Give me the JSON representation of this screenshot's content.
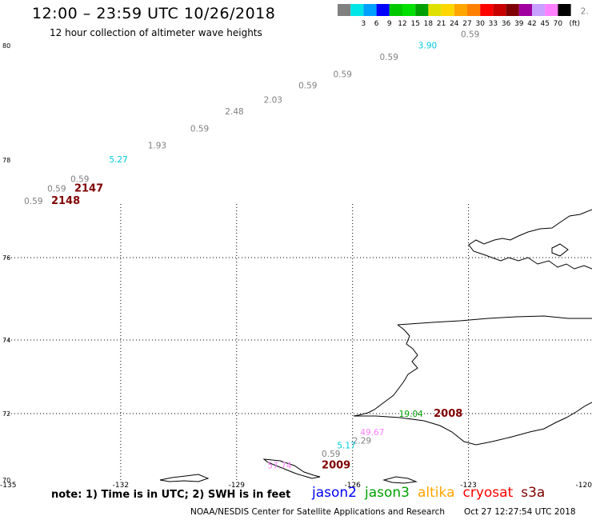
{
  "header": {
    "title": "12:00 – 23:59 UTC 10/26/2018",
    "subtitle": "12 hour collection of altimeter wave heights"
  },
  "legend": {
    "unit": "(ft)",
    "bins": [
      {
        "label": "",
        "color": "#808080"
      },
      {
        "label": "3",
        "color": "#00e5e5"
      },
      {
        "label": "6",
        "color": "#00a0ff"
      },
      {
        "label": "9",
        "color": "#0000ff"
      },
      {
        "label": "12",
        "color": "#00c800"
      },
      {
        "label": "15",
        "color": "#00e000"
      },
      {
        "label": "18",
        "color": "#00a000"
      },
      {
        "label": "21",
        "color": "#e0e000"
      },
      {
        "label": "24",
        "color": "#ffd700"
      },
      {
        "label": "27",
        "color": "#ffa500"
      },
      {
        "label": "30",
        "color": "#ff7f00"
      },
      {
        "label": "33",
        "color": "#ff0000"
      },
      {
        "label": "36",
        "color": "#c80000"
      },
      {
        "label": "39",
        "color": "#800000"
      },
      {
        "label": "42",
        "color": "#a000a0"
      },
      {
        "label": "45",
        "color": "#c8a0ff"
      },
      {
        "label": "70",
        "color": "#ff80ff"
      },
      {
        "label": "",
        "color": "#000000"
      }
    ]
  },
  "axes": {
    "lon_labels": [
      "-135",
      "-132",
      "-129",
      "-126",
      "-123",
      "-120"
    ],
    "lat_labels": [
      "80",
      "78",
      "76",
      "74",
      "72",
      "70"
    ]
  },
  "observations": [
    {
      "text": "0.59",
      "lon": -134.5,
      "lat": 77.1,
      "color": "#808080"
    },
    {
      "text": "2148",
      "lon": -133.8,
      "lat": 77.1,
      "color": "#800000",
      "bold": true
    },
    {
      "text": "0.59",
      "lon": -133.9,
      "lat": 77.35,
      "color": "#808080"
    },
    {
      "text": "2147",
      "lon": -133.2,
      "lat": 77.35,
      "color": "#800000",
      "bold": true
    },
    {
      "text": "0.59",
      "lon": -133.3,
      "lat": 77.55,
      "color": "#808080"
    },
    {
      "text": "5.27",
      "lon": -132.3,
      "lat": 77.95,
      "color": "#00c8e0"
    },
    {
      "text": "1.93",
      "lon": -131.3,
      "lat": 78.2,
      "color": "#808080"
    },
    {
      "text": "0.59",
      "lon": -130.2,
      "lat": 78.5,
      "color": "#808080"
    },
    {
      "text": "2.48",
      "lon": -129.3,
      "lat": 78.8,
      "color": "#808080"
    },
    {
      "text": "2.03",
      "lon": -128.3,
      "lat": 79.0,
      "color": "#808080"
    },
    {
      "text": "0.59",
      "lon": -127.4,
      "lat": 79.25,
      "color": "#808080"
    },
    {
      "text": "0.59",
      "lon": -126.5,
      "lat": 79.45,
      "color": "#808080"
    },
    {
      "text": "0.59",
      "lon": -125.3,
      "lat": 79.75,
      "color": "#808080"
    },
    {
      "text": "3.90",
      "lon": -124.3,
      "lat": 79.95,
      "color": "#00c8e0"
    },
    {
      "text": "0.59",
      "lon": -123.2,
      "lat": 80.15,
      "color": "#808080"
    },
    {
      "text": "2.",
      "lon": -120.1,
      "lat": 80.55,
      "color": "#808080"
    },
    {
      "text": "19.04",
      "lon": -124.8,
      "lat": 71.9,
      "color": "#00a000"
    },
    {
      "text": "2008",
      "lon": -123.9,
      "lat": 71.9,
      "color": "#800000",
      "bold": true
    },
    {
      "text": "49.67",
      "lon": -125.8,
      "lat": 71.35,
      "color": "#ff80ff"
    },
    {
      "text": "2.29",
      "lon": -126.0,
      "lat": 71.1,
      "color": "#808080"
    },
    {
      "text": "5.17",
      "lon": -126.4,
      "lat": 70.95,
      "color": "#00c8e0"
    },
    {
      "text": "0.59",
      "lon": -126.8,
      "lat": 70.7,
      "color": "#808080"
    },
    {
      "text": "2009",
      "lon": -126.8,
      "lat": 70.35,
      "color": "#800000",
      "bold": true
    },
    {
      "text": "57.74",
      "lon": -128.2,
      "lat": 70.35,
      "color": "#ff80ff"
    }
  ],
  "footer": {
    "note": "note: 1) Time is in UTC; 2) SWH is in feet",
    "satellites": [
      {
        "name": "jason2",
        "color": "#0000ff"
      },
      {
        "name": "jason3",
        "color": "#00a000"
      },
      {
        "name": "altika",
        "color": "#ffa500"
      },
      {
        "name": "cryosat",
        "color": "#ff0000"
      },
      {
        "name": "s3a",
        "color": "#800000"
      }
    ],
    "credit": "NOAA/NESDIS Center for Satellite Applications and Research",
    "timestamp": "Oct 27 12:27:54 UTC 2018"
  }
}
